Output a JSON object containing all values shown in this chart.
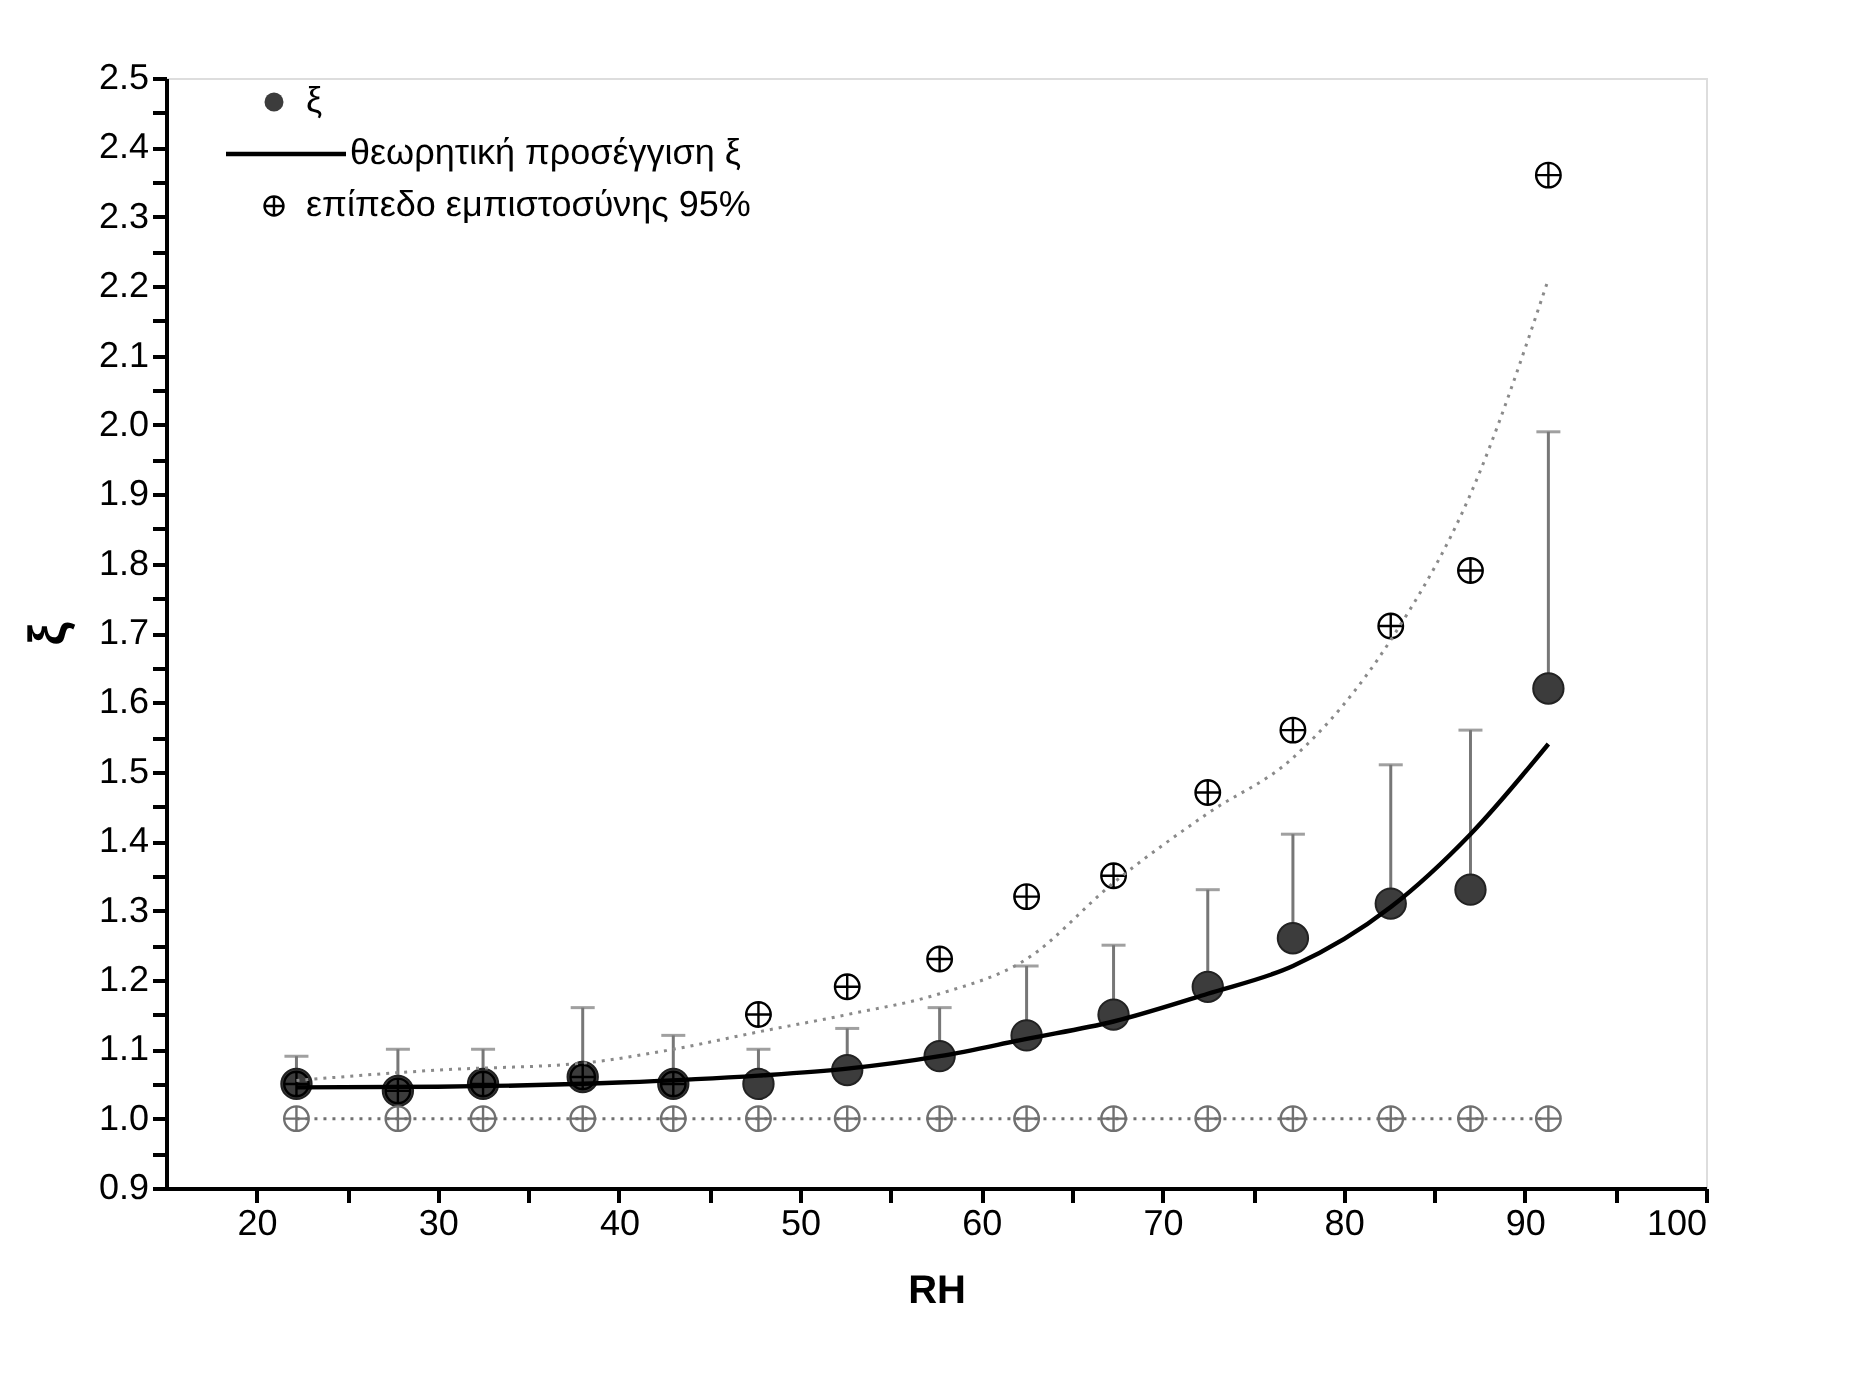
{
  "chart_data": {
    "type": "scatter",
    "xlabel": "RH",
    "ylabel": "ξ",
    "xlim": [
      15,
      100
    ],
    "xticks": [
      20,
      {
        "value": 25,
        "label": null
      },
      30,
      {
        "value": 35,
        "label": null
      },
      40,
      {
        "value": 45,
        "label": null
      },
      50,
      {
        "value": 55,
        "label": null
      },
      60,
      {
        "value": 65,
        "label": null
      },
      70,
      {
        "value": 75,
        "label": null
      },
      80,
      {
        "value": 85,
        "label": null
      },
      90,
      {
        "value": 95,
        "label": null
      },
      100
    ],
    "ylim": [
      0.9,
      2.5
    ],
    "yticks": [
      {
        "value": 0.9,
        "label": "0.9"
      },
      {
        "value": 0.95,
        "label": null
      },
      {
        "value": 1.0,
        "label": "1.0"
      },
      {
        "value": 1.05,
        "label": null
      },
      {
        "value": 1.1,
        "label": "1.1"
      },
      {
        "value": 1.15,
        "label": null
      },
      {
        "value": 1.2,
        "label": "1.2"
      },
      {
        "value": 1.25,
        "label": null
      },
      {
        "value": 1.3,
        "label": "1.3"
      },
      {
        "value": 1.35,
        "label": null
      },
      {
        "value": 1.4,
        "label": "1.4"
      },
      {
        "value": 1.45,
        "label": null
      },
      {
        "value": 1.5,
        "label": "1.5"
      },
      {
        "value": 1.55,
        "label": null
      },
      {
        "value": 1.6,
        "label": "1.6"
      },
      {
        "value": 1.65,
        "label": null
      },
      {
        "value": 1.7,
        "label": "1.7"
      },
      {
        "value": 1.75,
        "label": null
      },
      {
        "value": 1.8,
        "label": "1.8"
      },
      {
        "value": 1.85,
        "label": null
      },
      {
        "value": 1.9,
        "label": "1.9"
      },
      {
        "value": 1.95,
        "label": null
      },
      {
        "value": 2.0,
        "label": "2.0"
      },
      {
        "value": 2.05,
        "label": null
      },
      {
        "value": 2.1,
        "label": "2.1"
      },
      {
        "value": 2.15,
        "label": null
      },
      {
        "value": 2.2,
        "label": "2.2"
      },
      {
        "value": 2.25,
        "label": null
      },
      {
        "value": 2.3,
        "label": "2.3"
      },
      {
        "value": 2.35,
        "label": null
      },
      {
        "value": 2.4,
        "label": "2.4"
      },
      {
        "value": 2.45,
        "label": null
      },
      {
        "value": 2.5,
        "label": "2.5"
      }
    ],
    "grid": false,
    "legend": "top left",
    "series": [
      {
        "name": "ξ",
        "type": "scatter",
        "marker": "circle",
        "color": "#3c3c3c",
        "x": [
          22.2,
          27.8,
          32.5,
          38,
          43,
          47.7,
          52.6,
          57.7,
          62.5,
          67.3,
          72.5,
          77.2,
          82.6,
          87,
          91.3
        ],
        "values": [
          1.05,
          1.04,
          1.05,
          1.06,
          1.05,
          1.05,
          1.07,
          1.09,
          1.12,
          1.15,
          1.19,
          1.26,
          1.31,
          1.33,
          1.62
        ],
        "errors": [
          [
            1.05,
            1.09
          ],
          [
            1.04,
            1.1
          ],
          [
            1.05,
            1.1
          ],
          [
            1.06,
            1.16
          ],
          [
            1.05,
            1.12
          ],
          [
            1.05,
            1.1
          ],
          [
            1.07,
            1.13
          ],
          [
            1.09,
            1.16
          ],
          [
            1.12,
            1.22
          ],
          [
            1.15,
            1.25
          ],
          [
            1.19,
            1.33
          ],
          [
            1.26,
            1.41
          ],
          [
            1.31,
            1.51
          ],
          [
            1.33,
            1.56
          ],
          [
            1.62,
            1.99
          ]
        ]
      },
      {
        "name": "θεωρητική προσέγγιση ξ",
        "type": "line",
        "marker": "none",
        "line_style": "solid",
        "color": "#000000",
        "x": [
          22.2,
          30,
          40,
          47.7,
          52.6,
          57.7,
          62.5,
          67.3,
          72.5,
          77.2,
          82.6,
          87,
          91.3
        ],
        "values": [
          1.045,
          1.046,
          1.052,
          1.062,
          1.072,
          1.09,
          1.115,
          1.14,
          1.18,
          1.22,
          1.305,
          1.41,
          1.54
        ]
      },
      {
        "name": "επίπεδο εμπιστοσύνης 95%",
        "type": "scatter",
        "marker": "cross",
        "color": "#000000",
        "x": [
          22.2,
          27.8,
          32.5,
          38,
          43,
          47.7,
          52.6,
          57.7,
          62.5,
          67.3,
          72.5,
          77.2,
          82.6,
          87,
          91.3
        ],
        "values": [
          1.05,
          1.04,
          1.05,
          1.06,
          1.05,
          1.15,
          1.19,
          1.23,
          1.32,
          1.35,
          1.47,
          1.56,
          1.71,
          1.79,
          2.36
        ]
      },
      {
        "type": "line",
        "marker": "none",
        "line_style": "dotted",
        "color": "#8a8a8a",
        "x": [
          22.2,
          30,
          38,
          43,
          47.7,
          52.6,
          57.7,
          62.5,
          67.3,
          72.5,
          77.2,
          82.6,
          87,
          91.3
        ],
        "values": [
          1.055,
          1.07,
          1.08,
          1.1,
          1.125,
          1.15,
          1.18,
          1.23,
          1.34,
          1.44,
          1.52,
          1.69,
          1.9,
          2.21
        ]
      },
      {
        "type": "line",
        "marker": "cross",
        "line_style": "dotted",
        "color": "#707070",
        "x": [
          22.2,
          27.8,
          32.5,
          38,
          43,
          47.7,
          52.6,
          57.7,
          62.5,
          67.3,
          72.5,
          77.2,
          82.6,
          87,
          91.3
        ],
        "values": [
          1.0,
          1.0,
          1.0,
          1.0,
          1.0,
          1.0,
          1.0,
          1.0,
          1.0,
          1.0,
          1.0,
          1.0,
          1.0,
          1.0,
          1.0
        ]
      }
    ]
  }
}
